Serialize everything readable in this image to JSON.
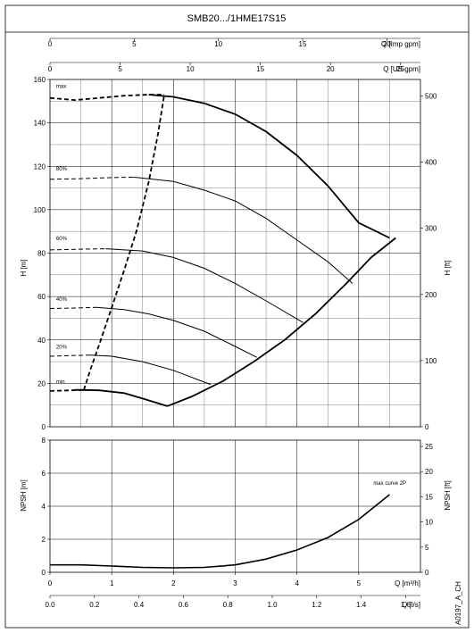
{
  "chart_data": {
    "type": "line",
    "title": "SMB20.../1HME17S15",
    "code": "A0197_A_CH",
    "units": {
      "q_imp": "Q [Imp gpm]",
      "q_us": "Q [US gpm]",
      "q_m3h": "Q [m³/h]",
      "q_ls": "Q [l/s]",
      "h_m": "H [m]",
      "h_ft": "H [ft]",
      "npsh_m": "NPSH [m]",
      "npsh_ft": "NPSH [ft]"
    },
    "ticks": {
      "q_imp": [
        "0",
        "5",
        "10",
        "15",
        "20"
      ],
      "q_us": [
        "0",
        "5",
        "10",
        "15",
        "20",
        "25"
      ],
      "q_m3h": [
        "0",
        "1",
        "2",
        "3",
        "4",
        "5"
      ],
      "q_ls": [
        "0.0",
        "0.2",
        "0.4",
        "0.6",
        "0.8",
        "1.0",
        "1.2",
        "1.4",
        "1.6"
      ],
      "h_m": [
        "0",
        "20",
        "40",
        "60",
        "80",
        "100",
        "120",
        "140",
        "160"
      ],
      "h_ft": [
        "0",
        "100",
        "200",
        "300",
        "400",
        "500"
      ],
      "npsh_m": [
        "0",
        "2",
        "4",
        "6",
        "8"
      ],
      "npsh_ft": [
        "0",
        "5",
        "10",
        "15",
        "20",
        "25"
      ]
    },
    "head_chart": {
      "xlim": [
        0,
        6
      ],
      "ylim": [
        0,
        160
      ],
      "series": [
        {
          "name": "max",
          "x": [
            0.0,
            0.4,
            0.8,
            1.2,
            1.6,
            1.85
          ],
          "y": [
            151.5,
            150.5,
            151.5,
            152.5,
            153,
            153
          ],
          "dashed": true
        },
        {
          "name": "max",
          "x": [
            1.6,
            2.0,
            2.5,
            3.0,
            3.5,
            4.0,
            4.5,
            5.0,
            5.5
          ],
          "y": [
            153,
            152,
            149,
            144,
            136,
            125,
            111,
            94,
            87
          ],
          "dashed": false
        },
        {
          "name": "80%",
          "x": [
            0.0,
            0.5,
            1.0,
            1.35
          ],
          "y": [
            114,
            114.3,
            114.8,
            115
          ],
          "dashed": true
        },
        {
          "name": "80%",
          "x": [
            1.35,
            2.0,
            2.5,
            3.0,
            3.5,
            4.0,
            4.5,
            4.9
          ],
          "y": [
            115,
            113,
            109,
            104,
            96,
            86,
            76,
            66
          ],
          "dashed": false
        },
        {
          "name": "60%",
          "x": [
            0.0,
            0.5,
            0.9
          ],
          "y": [
            81.5,
            81.8,
            82
          ],
          "dashed": true
        },
        {
          "name": "60%",
          "x": [
            0.9,
            1.5,
            2.0,
            2.5,
            3.0,
            3.5,
            4.1
          ],
          "y": [
            82,
            81,
            78,
            73,
            66,
            58,
            48
          ],
          "dashed": false
        },
        {
          "name": "40%",
          "x": [
            0.0,
            0.4,
            0.75
          ],
          "y": [
            54.5,
            54.7,
            55
          ],
          "dashed": true
        },
        {
          "name": "40%",
          "x": [
            0.75,
            1.2,
            1.6,
            2.0,
            2.5,
            3.0,
            3.35
          ],
          "y": [
            55,
            54,
            52,
            49,
            44,
            37,
            32
          ],
          "dashed": false
        },
        {
          "name": "20%",
          "x": [
            0.0,
            0.35,
            0.65
          ],
          "y": [
            32.5,
            32.8,
            33
          ],
          "dashed": true
        },
        {
          "name": "20%",
          "x": [
            0.65,
            1.0,
            1.5,
            2.0,
            2.6
          ],
          "y": [
            33,
            32.5,
            30,
            26,
            19.5
          ],
          "dashed": false
        },
        {
          "name": "min",
          "x": [
            0.0,
            0.35,
            0.55
          ],
          "y": [
            16.5,
            16.8,
            17
          ],
          "dashed": true
        },
        {
          "name": "min",
          "x": [
            0.4,
            0.8,
            1.2,
            1.5,
            1.9
          ],
          "y": [
            17,
            16.8,
            15.5,
            13,
            9.5
          ],
          "dashed": false
        },
        {
          "name": "",
          "x": [
            1.9,
            2.3,
            2.8,
            3.3,
            3.8,
            4.3,
            4.8,
            5.2,
            5.6
          ],
          "y": [
            9.5,
            14,
            21,
            30,
            40,
            52,
            66,
            78,
            87
          ],
          "dashed": false
        },
        {
          "name": "",
          "x": [
            0.55,
            0.65,
            0.8,
            1.0,
            1.2,
            1.4,
            1.6,
            1.75,
            1.85
          ],
          "y": [
            17,
            26,
            38,
            55,
            72,
            90,
            113,
            135,
            153
          ],
          "dashed": true
        }
      ],
      "curve_labels": [
        {
          "text": "max",
          "x": 0.1,
          "y": 156
        },
        {
          "text": "80%",
          "x": 0.1,
          "y": 118
        },
        {
          "text": "60%",
          "x": 0.1,
          "y": 86
        },
        {
          "text": "40%",
          "x": 0.1,
          "y": 58
        },
        {
          "text": "20%",
          "x": 0.1,
          "y": 36
        },
        {
          "text": "min",
          "x": 0.1,
          "y": 20
        }
      ]
    },
    "npsh_chart": {
      "xlim": [
        0,
        6
      ],
      "ylim": [
        0,
        8
      ],
      "series": [
        {
          "name": "max curve 2P",
          "x": [
            0.0,
            0.5,
            1.0,
            1.5,
            2.0,
            2.5,
            3.0,
            3.5,
            4.0,
            4.5,
            5.0,
            5.5
          ],
          "y": [
            0.45,
            0.45,
            0.38,
            0.3,
            0.27,
            0.3,
            0.45,
            0.8,
            1.35,
            2.1,
            3.2,
            4.7
          ]
        }
      ]
    }
  }
}
